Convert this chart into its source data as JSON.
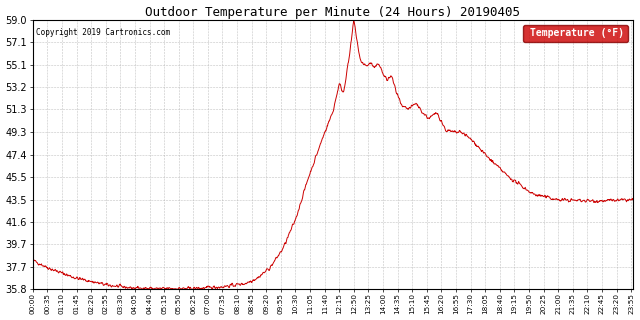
{
  "title": "Outdoor Temperature per Minute (24 Hours) 20190405",
  "copyright_text": "Copyright 2019 Cartronics.com",
  "legend_label": "Temperature (°F)",
  "line_color": "#cc0000",
  "background_color": "#ffffff",
  "grid_color": "#aaaaaa",
  "yticks": [
    35.8,
    37.7,
    39.7,
    41.6,
    43.5,
    45.5,
    47.4,
    49.3,
    51.3,
    53.2,
    55.1,
    57.1,
    59.0
  ],
  "ymin": 35.8,
  "ymax": 59.0,
  "total_minutes": 1440,
  "xtick_interval": 35,
  "xtick_labels": [
    "00:00",
    "00:35",
    "01:10",
    "01:45",
    "02:20",
    "02:55",
    "03:30",
    "04:05",
    "04:40",
    "05:15",
    "05:50",
    "06:25",
    "07:00",
    "07:35",
    "08:10",
    "08:45",
    "09:20",
    "09:55",
    "10:30",
    "11:05",
    "11:40",
    "12:15",
    "12:50",
    "13:25",
    "14:00",
    "14:35",
    "15:10",
    "15:45",
    "16:20",
    "16:55",
    "17:30",
    "18:05",
    "18:40",
    "19:15",
    "19:50",
    "20:25",
    "21:00",
    "21:35",
    "22:10",
    "22:45",
    "23:20",
    "23:55"
  ]
}
